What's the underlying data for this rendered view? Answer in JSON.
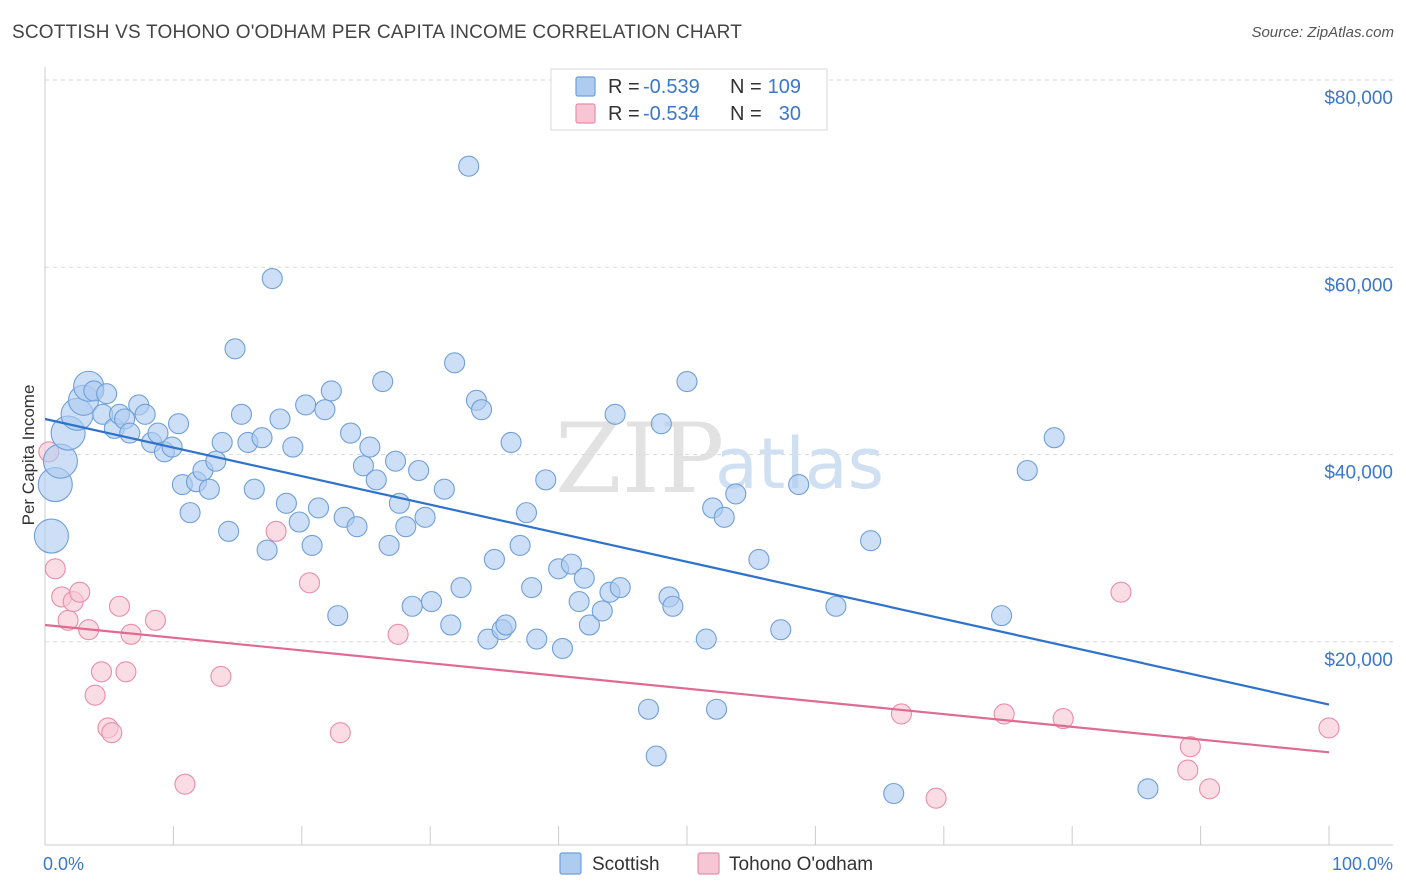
{
  "header": {
    "title": "SCOTTISH VS TOHONO O'ODHAM PER CAPITA INCOME CORRELATION CHART",
    "source": "Source: ZipAtlas.com"
  },
  "colors": {
    "scottish_fill": "#aecbf0",
    "scottish_stroke": "#6f9fd8",
    "scottish_line": "#2f72cc",
    "tohono_fill": "#f7c6d5",
    "tohono_stroke": "#e98daa",
    "tohono_line": "#e06b92",
    "tick_text": "#3a78c9",
    "grid": "#dcdcdc"
  },
  "watermark": {
    "zip": "ZIP",
    "atlas": "atlas"
  },
  "legend": {
    "rows": [
      {
        "r_label": "R =",
        "r_value": "-0.539",
        "n_label": "N =",
        "n_value": "109"
      },
      {
        "r_label": "R =",
        "r_value": "-0.534",
        "n_label": "N =",
        "n_value": "30"
      }
    ]
  },
  "bottom_legend": {
    "series1": "Scottish",
    "series2": "Tohono O'odham"
  },
  "chart_data": {
    "type": "scatter",
    "title": "SCOTTISH VS TOHONO O'ODHAM PER CAPITA INCOME CORRELATION CHART",
    "xlabel": "",
    "ylabel": "Per Capita Income",
    "xlim": [
      0,
      100
    ],
    "ylim": [
      0,
      80000
    ],
    "x_tick_labels": [
      "0.0%",
      "100.0%"
    ],
    "y_ticks": [
      20000,
      40000,
      60000,
      80000
    ],
    "y_tick_labels": [
      "$20,000",
      "$40,000",
      "$60,000",
      "$80,000"
    ],
    "grid": true,
    "series": [
      {
        "name": "Scottish",
        "R": -0.539,
        "N": 109,
        "trend": {
          "x": [
            0,
            100
          ],
          "y": [
            45500,
            15000
          ]
        },
        "points": [
          {
            "x": 0.5,
            "y": 33000,
            "s": 2
          },
          {
            "x": 0.8,
            "y": 38500,
            "s": 2
          },
          {
            "x": 1.2,
            "y": 41000,
            "s": 2
          },
          {
            "x": 1.8,
            "y": 44000,
            "s": 2
          },
          {
            "x": 2.5,
            "y": 46000,
            "s": 1.5
          },
          {
            "x": 3.0,
            "y": 47500,
            "s": 1
          },
          {
            "x": 3.4,
            "y": 49000,
            "s": 1
          },
          {
            "x": 3.8,
            "y": 48500,
            "s": 0
          },
          {
            "x": 4.5,
            "y": 46000,
            "s": 0
          },
          {
            "x": 4.8,
            "y": 48200,
            "s": 0
          },
          {
            "x": 5.4,
            "y": 44500,
            "s": 0
          },
          {
            "x": 5.8,
            "y": 46000,
            "s": 0
          },
          {
            "x": 6.2,
            "y": 45500,
            "s": 0
          },
          {
            "x": 6.6,
            "y": 44000,
            "s": 0
          },
          {
            "x": 7.3,
            "y": 47000,
            "s": 0
          },
          {
            "x": 7.8,
            "y": 46000,
            "s": 0
          },
          {
            "x": 8.3,
            "y": 43000,
            "s": 0
          },
          {
            "x": 8.8,
            "y": 44000,
            "s": 0
          },
          {
            "x": 9.3,
            "y": 42000,
            "s": 0
          },
          {
            "x": 9.9,
            "y": 42500,
            "s": 0
          },
          {
            "x": 10.4,
            "y": 45000,
            "s": 0
          },
          {
            "x": 10.7,
            "y": 38500,
            "s": 0
          },
          {
            "x": 11.3,
            "y": 35500,
            "s": 0
          },
          {
            "x": 11.8,
            "y": 38800,
            "s": 0
          },
          {
            "x": 12.3,
            "y": 40000,
            "s": 0
          },
          {
            "x": 12.8,
            "y": 38000,
            "s": 0
          },
          {
            "x": 13.3,
            "y": 41000,
            "s": 0
          },
          {
            "x": 13.8,
            "y": 43000,
            "s": 0
          },
          {
            "x": 14.3,
            "y": 33500,
            "s": 0
          },
          {
            "x": 14.8,
            "y": 53000,
            "s": 0
          },
          {
            "x": 15.3,
            "y": 46000,
            "s": 0
          },
          {
            "x": 15.8,
            "y": 43000,
            "s": 0
          },
          {
            "x": 16.3,
            "y": 38000,
            "s": 0
          },
          {
            "x": 16.9,
            "y": 43500,
            "s": 0
          },
          {
            "x": 17.3,
            "y": 31500,
            "s": 0
          },
          {
            "x": 17.7,
            "y": 60500,
            "s": 0
          },
          {
            "x": 18.3,
            "y": 45500,
            "s": 0
          },
          {
            "x": 18.8,
            "y": 36500,
            "s": 0
          },
          {
            "x": 19.3,
            "y": 42500,
            "s": 0
          },
          {
            "x": 19.8,
            "y": 34500,
            "s": 0
          },
          {
            "x": 20.3,
            "y": 47000,
            "s": 0
          },
          {
            "x": 20.8,
            "y": 32000,
            "s": 0
          },
          {
            "x": 21.3,
            "y": 36000,
            "s": 0
          },
          {
            "x": 21.8,
            "y": 46500,
            "s": 0
          },
          {
            "x": 22.3,
            "y": 48500,
            "s": 0
          },
          {
            "x": 22.8,
            "y": 24500,
            "s": 0
          },
          {
            "x": 23.3,
            "y": 35000,
            "s": 0
          },
          {
            "x": 23.8,
            "y": 44000,
            "s": 0
          },
          {
            "x": 24.3,
            "y": 34000,
            "s": 0
          },
          {
            "x": 24.8,
            "y": 40500,
            "s": 0
          },
          {
            "x": 25.3,
            "y": 42500,
            "s": 0
          },
          {
            "x": 25.8,
            "y": 39000,
            "s": 0
          },
          {
            "x": 26.3,
            "y": 49500,
            "s": 0
          },
          {
            "x": 26.8,
            "y": 32000,
            "s": 0
          },
          {
            "x": 27.3,
            "y": 41000,
            "s": 0
          },
          {
            "x": 27.6,
            "y": 36500,
            "s": 0
          },
          {
            "x": 28.1,
            "y": 34000,
            "s": 0
          },
          {
            "x": 28.6,
            "y": 25500,
            "s": 0
          },
          {
            "x": 29.1,
            "y": 40000,
            "s": 0
          },
          {
            "x": 29.6,
            "y": 35000,
            "s": 0
          },
          {
            "x": 30.1,
            "y": 26000,
            "s": 0
          },
          {
            "x": 31.1,
            "y": 38000,
            "s": 0
          },
          {
            "x": 31.6,
            "y": 23500,
            "s": 0
          },
          {
            "x": 31.9,
            "y": 51500,
            "s": 0
          },
          {
            "x": 32.4,
            "y": 27500,
            "s": 0
          },
          {
            "x": 33.0,
            "y": 72500,
            "s": 0
          },
          {
            "x": 33.6,
            "y": 47500,
            "s": 0
          },
          {
            "x": 34.0,
            "y": 46500,
            "s": 0
          },
          {
            "x": 34.5,
            "y": 22000,
            "s": 0
          },
          {
            "x": 35.0,
            "y": 30500,
            "s": 0
          },
          {
            "x": 35.6,
            "y": 23000,
            "s": 0
          },
          {
            "x": 35.9,
            "y": 23500,
            "s": 0
          },
          {
            "x": 36.3,
            "y": 43000,
            "s": 0
          },
          {
            "x": 37.0,
            "y": 32000,
            "s": 0
          },
          {
            "x": 37.5,
            "y": 35500,
            "s": 0
          },
          {
            "x": 37.9,
            "y": 27500,
            "s": 0
          },
          {
            "x": 38.3,
            "y": 22000,
            "s": 0
          },
          {
            "x": 39.0,
            "y": 39000,
            "s": 0
          },
          {
            "x": 40.0,
            "y": 29500,
            "s": 0
          },
          {
            "x": 40.3,
            "y": 21000,
            "s": 0
          },
          {
            "x": 41.0,
            "y": 30000,
            "s": 0
          },
          {
            "x": 41.6,
            "y": 26000,
            "s": 0
          },
          {
            "x": 42.0,
            "y": 28500,
            "s": 0
          },
          {
            "x": 42.4,
            "y": 23500,
            "s": 0
          },
          {
            "x": 43.4,
            "y": 25000,
            "s": 0
          },
          {
            "x": 44.0,
            "y": 27000,
            "s": 0
          },
          {
            "x": 44.4,
            "y": 46000,
            "s": 0
          },
          {
            "x": 44.8,
            "y": 27500,
            "s": 0
          },
          {
            "x": 47.0,
            "y": 14500,
            "s": 0
          },
          {
            "x": 47.6,
            "y": 9500,
            "s": 0
          },
          {
            "x": 48.0,
            "y": 45000,
            "s": 0
          },
          {
            "x": 48.6,
            "y": 26500,
            "s": 0
          },
          {
            "x": 48.9,
            "y": 25500,
            "s": 0
          },
          {
            "x": 50.0,
            "y": 49500,
            "s": 0
          },
          {
            "x": 51.5,
            "y": 22000,
            "s": 0
          },
          {
            "x": 52.0,
            "y": 36000,
            "s": 0
          },
          {
            "x": 52.3,
            "y": 14500,
            "s": 0
          },
          {
            "x": 52.9,
            "y": 35000,
            "s": 0
          },
          {
            "x": 53.8,
            "y": 37500,
            "s": 0
          },
          {
            "x": 55.6,
            "y": 30500,
            "s": 0
          },
          {
            "x": 57.3,
            "y": 23000,
            "s": 0
          },
          {
            "x": 58.7,
            "y": 38500,
            "s": 0
          },
          {
            "x": 61.6,
            "y": 25500,
            "s": 0
          },
          {
            "x": 64.3,
            "y": 32500,
            "s": 0
          },
          {
            "x": 66.1,
            "y": 5500,
            "s": 0
          },
          {
            "x": 74.5,
            "y": 24500,
            "s": 0
          },
          {
            "x": 76.5,
            "y": 40000,
            "s": 0
          },
          {
            "x": 78.6,
            "y": 43500,
            "s": 0
          },
          {
            "x": 85.9,
            "y": 6000,
            "s": 0
          }
        ]
      },
      {
        "name": "Tohono O'odham",
        "R": -0.534,
        "N": 30,
        "trend": {
          "x": [
            0,
            100
          ],
          "y": [
            23500,
            9900
          ]
        },
        "points": [
          {
            "x": 0.3,
            "y": 42000
          },
          {
            "x": 0.8,
            "y": 29500
          },
          {
            "x": 1.3,
            "y": 26500
          },
          {
            "x": 1.8,
            "y": 24000
          },
          {
            "x": 2.2,
            "y": 26000
          },
          {
            "x": 2.7,
            "y": 27000
          },
          {
            "x": 3.4,
            "y": 23000
          },
          {
            "x": 3.9,
            "y": 16000
          },
          {
            "x": 4.4,
            "y": 18500
          },
          {
            "x": 4.9,
            "y": 12500
          },
          {
            "x": 5.2,
            "y": 12000
          },
          {
            "x": 5.8,
            "y": 25500
          },
          {
            "x": 6.3,
            "y": 18500
          },
          {
            "x": 6.7,
            "y": 22500
          },
          {
            "x": 8.6,
            "y": 24000
          },
          {
            "x": 10.9,
            "y": 6500
          },
          {
            "x": 13.7,
            "y": 18000
          },
          {
            "x": 18.0,
            "y": 33500
          },
          {
            "x": 20.6,
            "y": 28000
          },
          {
            "x": 23.0,
            "y": 12000
          },
          {
            "x": 27.5,
            "y": 22500
          },
          {
            "x": 66.7,
            "y": 14000
          },
          {
            "x": 69.4,
            "y": 5000
          },
          {
            "x": 74.7,
            "y": 14000
          },
          {
            "x": 79.3,
            "y": 13500
          },
          {
            "x": 83.8,
            "y": 27000
          },
          {
            "x": 89.0,
            "y": 8000
          },
          {
            "x": 89.2,
            "y": 10500
          },
          {
            "x": 90.7,
            "y": 6000
          },
          {
            "x": 100.0,
            "y": 12500
          }
        ]
      }
    ]
  }
}
